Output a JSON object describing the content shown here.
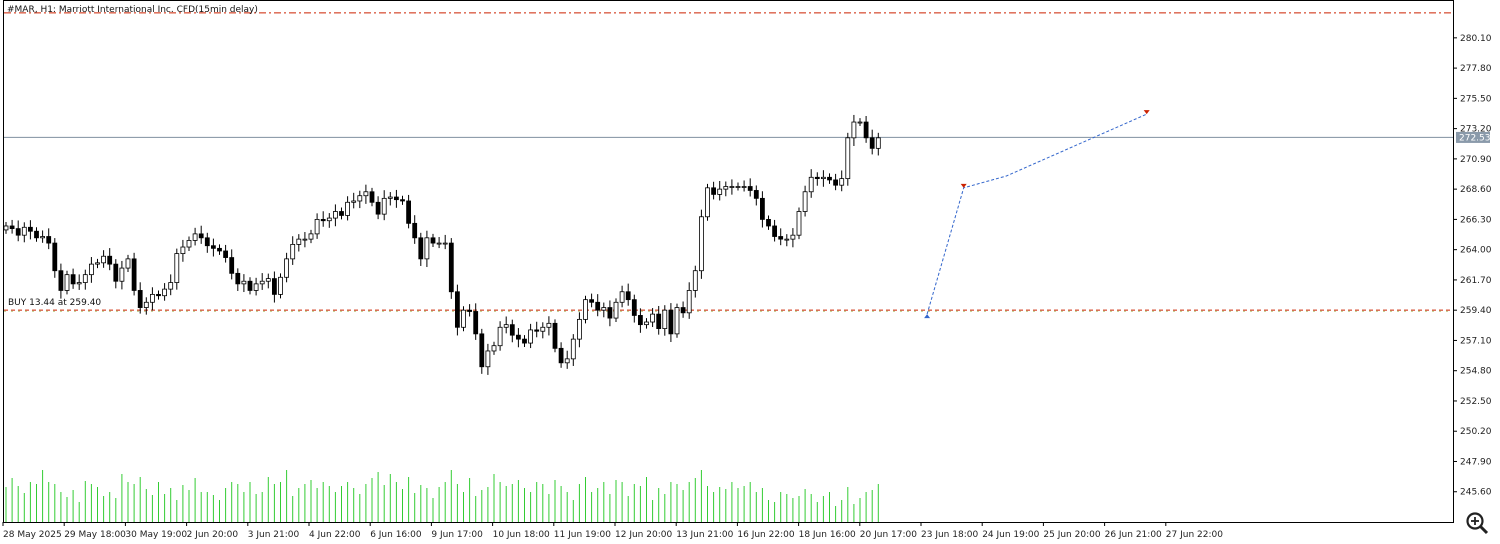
{
  "chart_data": {
    "type": "candlestick",
    "title": "#MAR, H1: Marriott International Inc. CFD(15min delay)",
    "symbol": "#MAR",
    "timeframe": "H1",
    "current_price": "272.53",
    "position_label": "BUY 13.44 at 259.40",
    "position_price": 259.4,
    "stop_line_price": 282.0,
    "ylim": [
      243.3,
      282.9
    ],
    "y_ticks": [
      "280.10",
      "277.80",
      "275.50",
      "273.20",
      "270.90",
      "268.60",
      "266.30",
      "264.00",
      "261.70",
      "259.40",
      "257.10",
      "254.80",
      "252.50",
      "250.20",
      "247.90",
      "245.60"
    ],
    "x_ticks": [
      "28 May 2025",
      "29 May 18:00",
      "30 May 19:00",
      "2 Jun 20:00",
      "3 Jun 21:00",
      "4 Jun 22:00",
      "6 Jun 16:00",
      "9 Jun 17:00",
      "10 Jun 18:00",
      "11 Jun 19:00",
      "12 Jun 20:00",
      "13 Jun 21:00",
      "16 Jun 22:00",
      "18 Jun 16:00",
      "20 Jun 17:00",
      "23 Jun 18:00",
      "24 Jun 19:00",
      "25 Jun 20:00",
      "26 Jun 21:00",
      "27 Jun 22:00"
    ],
    "closes": [
      265.8,
      265.6,
      265.1,
      265.7,
      265.4,
      264.9,
      265.0,
      264.5,
      262.4,
      260.9,
      262.1,
      261.4,
      261.5,
      262.1,
      262.9,
      263.0,
      263.5,
      262.9,
      261.6,
      262.6,
      263.3,
      260.9,
      259.6,
      260.0,
      260.6,
      260.5,
      261.0,
      261.5,
      263.7,
      264.2,
      264.7,
      265.2,
      264.9,
      264.3,
      264.1,
      263.9,
      263.4,
      262.2,
      261.4,
      261.6,
      260.9,
      261.4,
      261.6,
      261.8,
      260.6,
      261.9,
      263.3,
      264.4,
      264.8,
      264.8,
      265.2,
      266.3,
      266.2,
      266.4,
      266.9,
      266.6,
      267.6,
      267.7,
      268.1,
      268.4,
      267.6,
      266.7,
      267.9,
      268.0,
      267.8,
      267.7,
      266.0,
      264.9,
      263.3,
      264.9,
      264.5,
      264.5,
      264.5,
      260.8,
      258.1,
      259.4,
      259.3,
      257.6,
      255.1,
      256.3,
      256.7,
      258.1,
      258.3,
      257.5,
      257.2,
      256.9,
      257.9,
      257.8,
      258.1,
      258.4,
      256.5,
      255.4,
      255.7,
      257.2,
      258.7,
      260.2,
      260.0,
      259.4,
      259.6,
      258.8,
      260.0,
      260.8,
      260.2,
      259.0,
      258.3,
      258.5,
      259.1,
      258.0,
      259.4,
      257.6,
      259.6,
      259.2,
      260.9,
      262.4,
      266.5,
      268.7,
      268.2,
      268.6,
      268.8,
      268.8,
      268.8,
      268.8,
      268.5,
      267.9,
      266.3,
      265.8,
      265.0,
      264.8,
      264.8,
      265.1,
      266.9,
      268.4,
      269.5,
      269.4,
      269.5,
      269.3,
      268.9,
      269.4,
      272.5,
      273.7,
      273.7,
      272.5,
      271.7,
      272.5
    ],
    "volumes": [
      35,
      44,
      36,
      29,
      40,
      38,
      52,
      40,
      38,
      30,
      25,
      32,
      20,
      41,
      38,
      35,
      26,
      30,
      24,
      48,
      40,
      38,
      45,
      33,
      27,
      40,
      28,
      34,
      22,
      37,
      32,
      44,
      30,
      30,
      27,
      22,
      34,
      40,
      38,
      30,
      40,
      28,
      30,
      45,
      38,
      40,
      52,
      26,
      34,
      38,
      42,
      34,
      40,
      36,
      30,
      36,
      40,
      34,
      28,
      38,
      44,
      50,
      37,
      48,
      40,
      33,
      45,
      29,
      37,
      34,
      24,
      35,
      40,
      52,
      38,
      30,
      44,
      26,
      32,
      35,
      48,
      40,
      36,
      38,
      42,
      34,
      30,
      40,
      38,
      28,
      42,
      36,
      30,
      22,
      38,
      45,
      30,
      34,
      40,
      28,
      42,
      40,
      26,
      38,
      36,
      45,
      22,
      34,
      28,
      40,
      38,
      32,
      40,
      44,
      52,
      36,
      30,
      35,
      33,
      40,
      34,
      36,
      40,
      30,
      34,
      22,
      20,
      30,
      28,
      24,
      26,
      33,
      28,
      20,
      26,
      30,
      16,
      22,
      35,
      18,
      24,
      30,
      32,
      38
    ],
    "colors": {
      "bull_body": "#ffffff",
      "bear_body": "#000000",
      "candle_outline": "#000000",
      "volume": "#33cc33",
      "trade_line": "#3366cc",
      "level_line": "#cc2200",
      "price_line": "#8090a0",
      "price_label_bg": "#8a9aaa"
    }
  }
}
